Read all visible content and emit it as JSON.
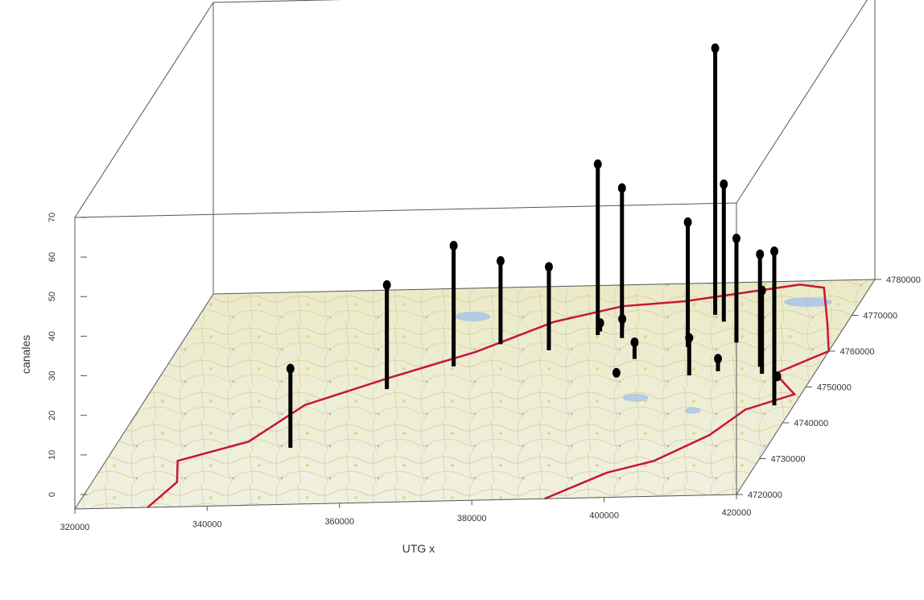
{
  "chart_data": {
    "type": "scatter",
    "subtype": "3d-stem",
    "xlabel": "UTG x",
    "ylabel": "",
    "zlabel": "canales",
    "x_ticks": [
      "320000",
      "340000",
      "360000",
      "380000",
      "400000",
      "420000"
    ],
    "y_ticks": [
      "4720000",
      "4730000",
      "4740000",
      "4750000",
      "4760000",
      "4770000",
      "4780000"
    ],
    "z_ticks": [
      "0",
      "10",
      "20",
      "30",
      "40",
      "50",
      "60",
      "70"
    ],
    "xlim": [
      320000,
      420000
    ],
    "ylim": [
      4720000,
      4780000
    ],
    "zlim": [
      0,
      70
    ],
    "base_map": "topographic map with red boundary line",
    "colors": {
      "stem": "#000000",
      "boundary": "#c8143c",
      "box": "#555555"
    },
    "points": [
      {
        "x": 347000,
        "y": 4736000,
        "z": 19
      },
      {
        "x": 356000,
        "y": 4752000,
        "z": 25
      },
      {
        "x": 364000,
        "y": 4758000,
        "z": 29
      },
      {
        "x": 369000,
        "y": 4764000,
        "z": 20
      },
      {
        "x": 377000,
        "y": 4762000,
        "z": 20
      },
      {
        "x": 383000,
        "y": 4767000,
        "z": 2
      },
      {
        "x": 383000,
        "y": 4766000,
        "z": 41
      },
      {
        "x": 386000,
        "y": 4768000,
        "z": 2
      },
      {
        "x": 387000,
        "y": 4765000,
        "z": 36
      },
      {
        "x": 390000,
        "y": 4754000,
        "z": 1
      },
      {
        "x": 391000,
        "y": 4759000,
        "z": 4
      },
      {
        "x": 398000,
        "y": 4762000,
        "z": 30
      },
      {
        "x": 399000,
        "y": 4771000,
        "z": 64
      },
      {
        "x": 401000,
        "y": 4769000,
        "z": 33
      },
      {
        "x": 401000,
        "y": 4754000,
        "z": 9
      },
      {
        "x": 405000,
        "y": 4763000,
        "z": 25
      },
      {
        "x": 405000,
        "y": 4755000,
        "z": 3
      },
      {
        "x": 411000,
        "y": 4756000,
        "z": 27
      },
      {
        "x": 412000,
        "y": 4754000,
        "z": 20
      },
      {
        "x": 415000,
        "y": 4752000,
        "z": 1
      },
      {
        "x": 417000,
        "y": 4745000,
        "z": 37
      }
    ]
  }
}
